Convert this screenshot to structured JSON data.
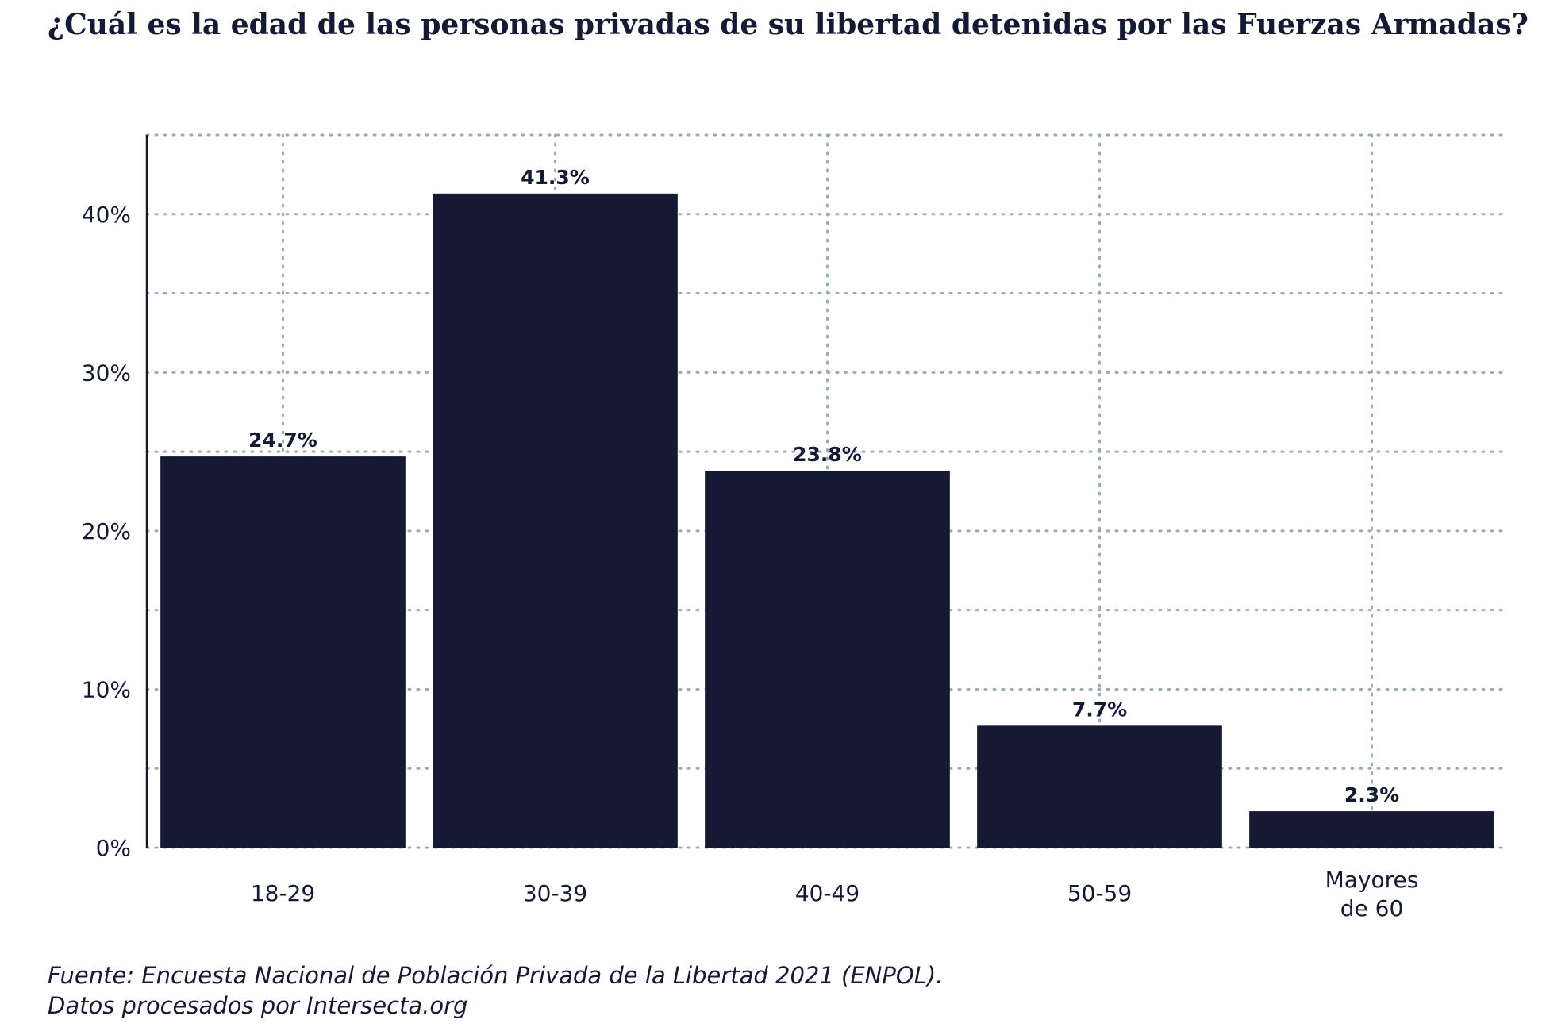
{
  "title": "¿Cuál es la edad de las personas privadas de su libertad detenidas por las Fuerzas Armadas?",
  "source": {
    "line1": "Fuente: Encuesta Nacional de Población Privada de la Libertad 2021 (ENPOL).",
    "line2": "Datos procesados por Intersecta.org"
  },
  "colors": {
    "bar": "#141a33",
    "text": "#141a33",
    "grid": "#9aabb5"
  },
  "chart_data": {
    "type": "bar",
    "categories": [
      [
        "18-29"
      ],
      [
        "30-39"
      ],
      [
        "40-49"
      ],
      [
        "50-59"
      ],
      [
        "Mayores",
        "de 60"
      ]
    ],
    "values": [
      24.7,
      41.3,
      23.8,
      7.7,
      2.3
    ],
    "value_labels": [
      "24.7%",
      "41.3%",
      "23.8%",
      "7.7%",
      "2.3%"
    ],
    "ylim": [
      0,
      45
    ],
    "yticks": [
      0,
      10,
      20,
      30,
      40
    ],
    "ytick_labels": [
      "0%",
      "10%",
      "20%",
      "30%",
      "40%"
    ],
    "grid": true,
    "xlabel": "",
    "ylabel": ""
  }
}
